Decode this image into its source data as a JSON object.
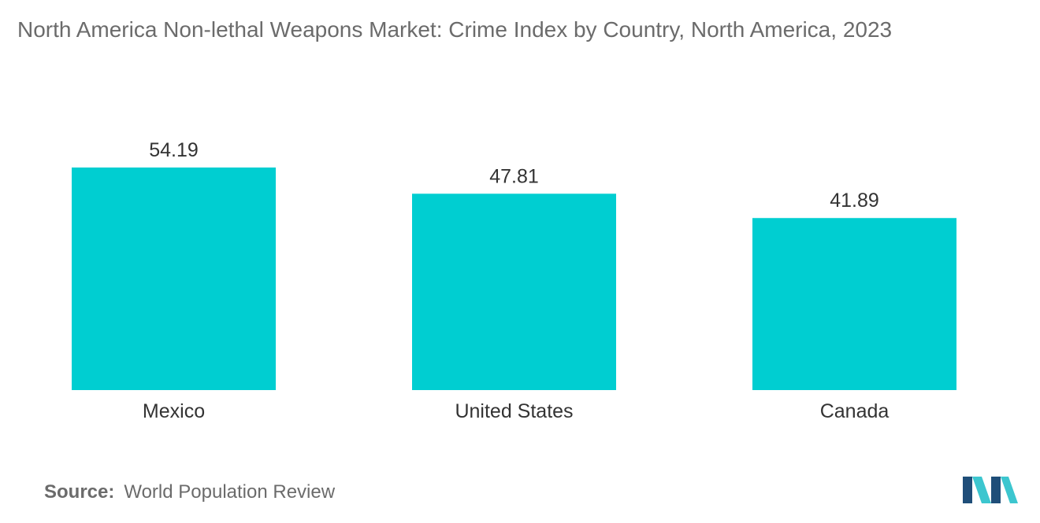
{
  "title": "North America Non-lethal Weapons Market: Crime Index by Country, North America, 2023",
  "source": {
    "label": "Source:",
    "text": "World Population Review"
  },
  "colors": {
    "bar": "#00CED1",
    "logo_dark": "#1f4e79",
    "logo_light": "#3cc6cf"
  },
  "logo_icon": "mordor-intelligence-logo-icon",
  "chart_data": {
    "type": "bar",
    "title": "North America Non-lethal Weapons Market: Crime Index by Country, North America, 2023",
    "categories": [
      "Mexico",
      "United States",
      "Canada"
    ],
    "values": [
      54.19,
      47.81,
      41.89
    ],
    "value_labels": [
      "54.19",
      "47.81",
      "41.89"
    ],
    "xlabel": "",
    "ylabel": "",
    "ylim": [
      0,
      54.19
    ],
    "grid": false,
    "legend": "none"
  }
}
